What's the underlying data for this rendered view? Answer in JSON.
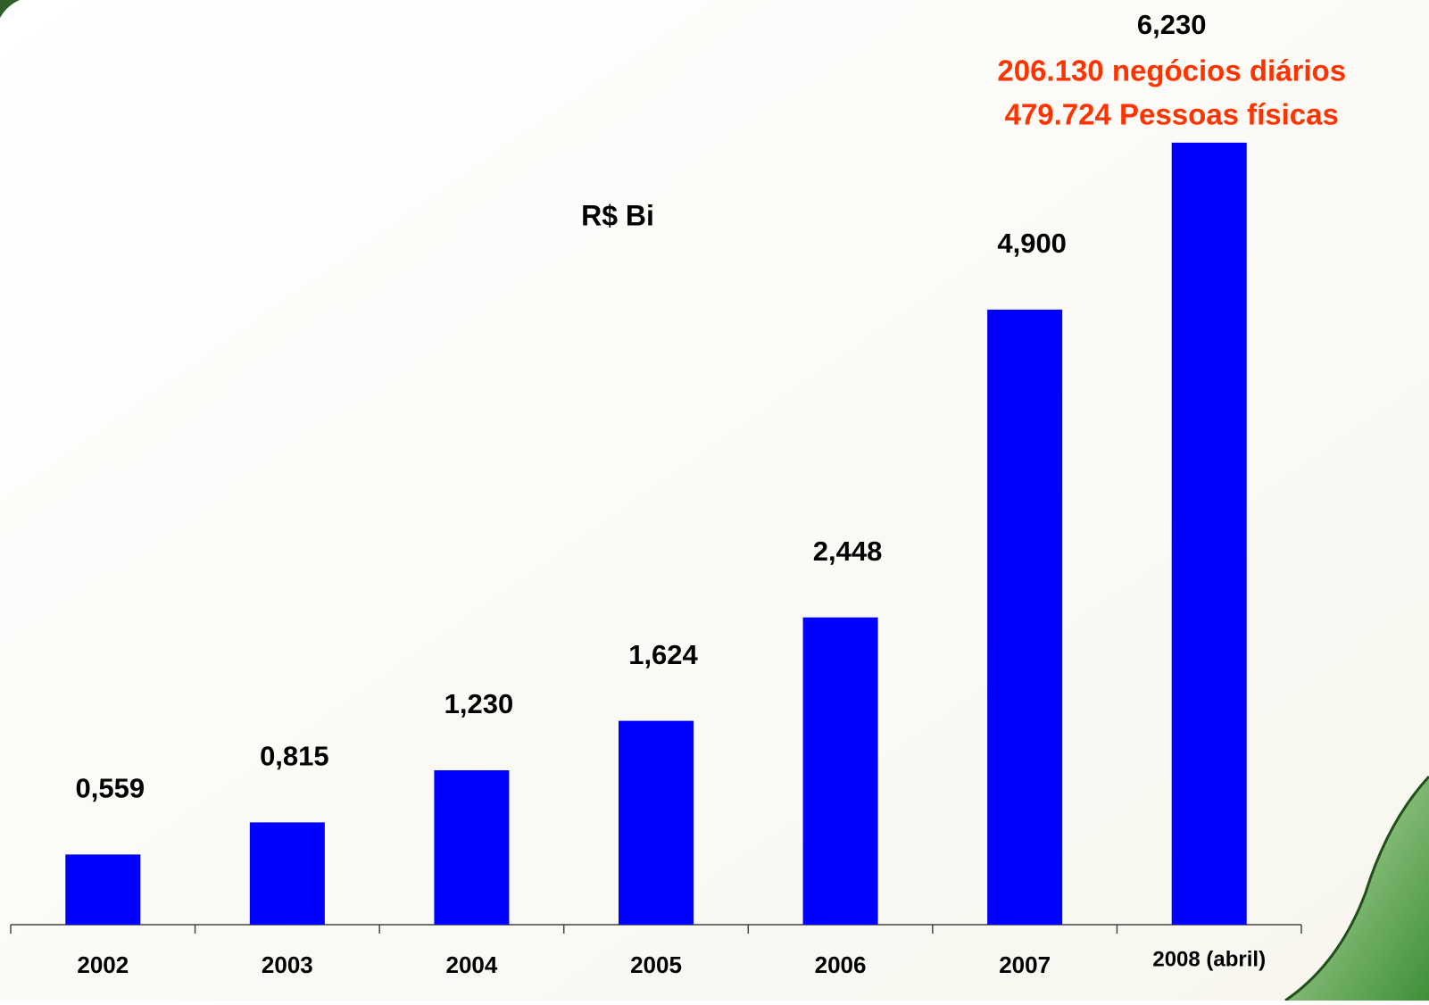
{
  "chart_data": {
    "type": "bar",
    "unit_label": "R$ Bi",
    "categories": [
      "2002",
      "2003",
      "2004",
      "2005",
      "2006",
      "2007",
      "2008 (abril)"
    ],
    "values": [
      0.559,
      0.815,
      1.23,
      1.624,
      2.448,
      4.9,
      6.23
    ],
    "value_labels": [
      "0,559",
      "0,815",
      "1,230",
      "1,624",
      "2,448",
      "4,900",
      "6,230"
    ],
    "annotations": [
      "206.130 negócios diários",
      "479.724 Pessoas físicas"
    ],
    "color": "#0000ff",
    "annotation_color": "#ff3300",
    "ylim": [
      0,
      6.3
    ]
  }
}
